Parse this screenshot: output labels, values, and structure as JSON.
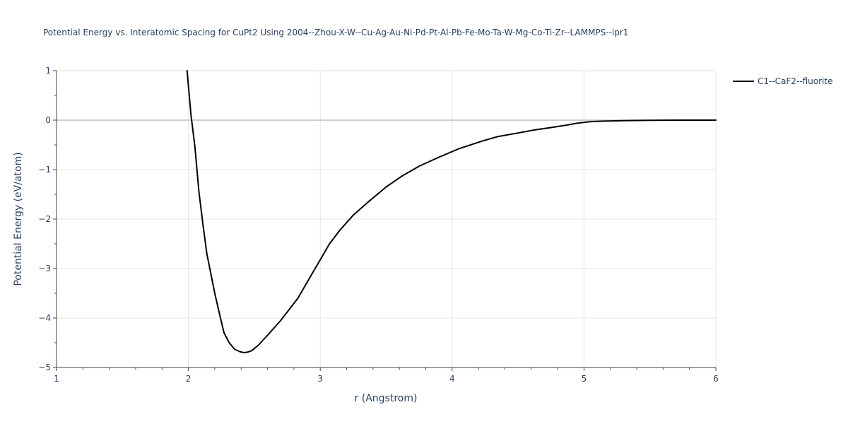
{
  "chart_data": {
    "type": "line",
    "title": "Potential Energy vs. Interatomic Spacing for CuPt2 Using 2004--Zhou-X-W--Cu-Ag-Au-Ni-Pd-Pt-Al-Pb-Fe-Mo-Ta-W-Mg-Co-Ti-Zr--LAMMPS--ipr1",
    "xlabel": "r (Angstrom)",
    "ylabel": "Potential Energy (eV/atom)",
    "xlim": [
      1,
      6
    ],
    "ylim": [
      -5,
      1
    ],
    "x_ticks": [
      1,
      2,
      3,
      4,
      5,
      6
    ],
    "y_ticks": [
      1,
      0,
      -1,
      -2,
      -3,
      -4,
      -5
    ],
    "x_tick_labels": [
      "1",
      "2",
      "3",
      "4",
      "5",
      "6"
    ],
    "y_tick_labels": [
      "1",
      "0",
      "−1",
      "−2",
      "−3",
      "−4",
      "−5"
    ],
    "grid": true,
    "legend_position": "top-right",
    "series": [
      {
        "name": "C1--CaF2--fluorite",
        "color": "#000000",
        "x": [
          1.99,
          2.02,
          2.05,
          2.08,
          2.11,
          2.14,
          2.17,
          2.2,
          2.23,
          2.27,
          2.31,
          2.35,
          2.39,
          2.42,
          2.45,
          2.48,
          2.53,
          2.6,
          2.7,
          2.83,
          2.95,
          3.07,
          3.15,
          3.25,
          3.37,
          3.5,
          3.62,
          3.75,
          3.9,
          4.05,
          4.22,
          4.35,
          4.5,
          4.62,
          4.75,
          4.87,
          4.95,
          5.05,
          5.15,
          5.3,
          5.5,
          5.7,
          5.9,
          6.0
        ],
        "y": [
          1.0,
          0.1,
          -0.55,
          -1.45,
          -2.1,
          -2.7,
          -3.1,
          -3.5,
          -3.85,
          -4.3,
          -4.5,
          -4.63,
          -4.68,
          -4.7,
          -4.69,
          -4.66,
          -4.55,
          -4.35,
          -4.05,
          -3.6,
          -3.05,
          -2.5,
          -2.22,
          -1.92,
          -1.64,
          -1.35,
          -1.13,
          -0.93,
          -0.75,
          -0.58,
          -0.43,
          -0.33,
          -0.26,
          -0.2,
          -0.15,
          -0.1,
          -0.06,
          -0.03,
          -0.02,
          -0.01,
          -0.005,
          0.0,
          0.0,
          0.0
        ]
      }
    ]
  }
}
